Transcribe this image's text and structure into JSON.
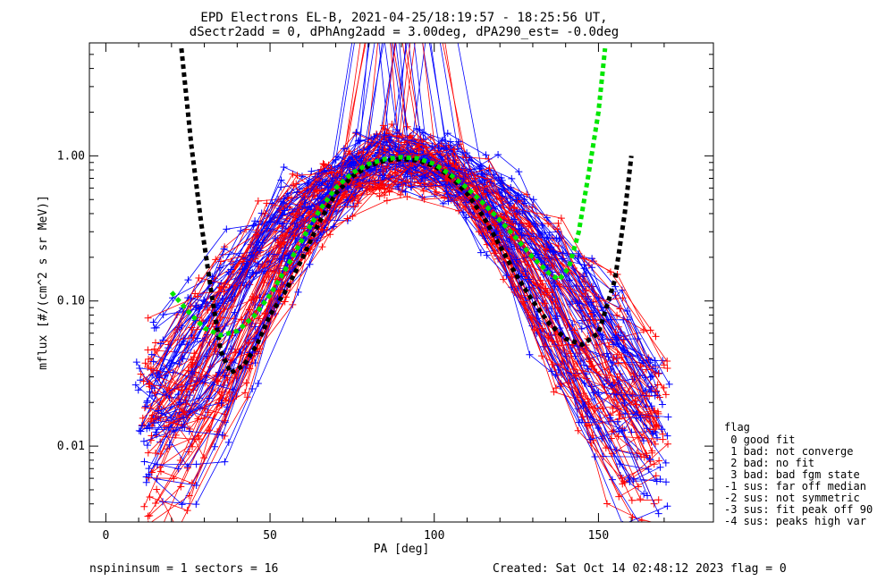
{
  "chart_data": {
    "type": "line",
    "title_lines": [
      "EPD Electrons EL-B, 2021-04-25/18:19:57 - 18:25:56 UT,",
      "dSectr2add = 0, dPhAng2add = 3.00deg, dPA290_est=  -0.0deg"
    ],
    "xlabel": "PA [deg]",
    "ylabel": "mflux [#/(cm^2 s sr MeV)]",
    "x_axis": {
      "range": [
        -5,
        185
      ],
      "ticks": [
        0,
        50,
        100,
        150
      ],
      "tick_labels": [
        "0",
        "50",
        "100",
        "150"
      ]
    },
    "y_axis": {
      "scale": "log",
      "range": [
        0.003,
        6
      ],
      "ticks": [
        0.01,
        0.1,
        1.0
      ],
      "tick_labels": [
        "0.01",
        "0.10",
        "1.00"
      ]
    },
    "fit_curves": [
      {
        "color": "#000000",
        "style": "dashed",
        "x": [
          23,
          26,
          29,
          32,
          35,
          38,
          42,
          46,
          50,
          55,
          60,
          65,
          70,
          75,
          80,
          85,
          90,
          95,
          100,
          105,
          110,
          115,
          120,
          125,
          130,
          135,
          140,
          145,
          150,
          155,
          158,
          160
        ],
        "y": [
          5.5,
          1.2,
          0.35,
          0.12,
          0.045,
          0.032,
          0.036,
          0.05,
          0.08,
          0.12,
          0.2,
          0.35,
          0.55,
          0.72,
          0.85,
          0.93,
          0.95,
          0.93,
          0.85,
          0.72,
          0.55,
          0.38,
          0.24,
          0.15,
          0.1,
          0.07,
          0.055,
          0.05,
          0.06,
          0.14,
          0.4,
          1.0
        ]
      },
      {
        "color": "#00e600",
        "style": "dashed",
        "x": [
          20,
          25,
          30,
          35,
          40,
          45,
          50,
          55,
          60,
          65,
          70,
          75,
          80,
          85,
          90,
          95,
          100,
          105,
          110,
          115,
          120,
          125,
          130,
          135,
          138,
          141,
          144,
          147,
          150,
          152
        ],
        "y": [
          0.115,
          0.085,
          0.065,
          0.058,
          0.062,
          0.078,
          0.11,
          0.17,
          0.27,
          0.42,
          0.6,
          0.76,
          0.88,
          0.95,
          0.98,
          0.96,
          0.88,
          0.74,
          0.6,
          0.47,
          0.36,
          0.27,
          0.2,
          0.155,
          0.14,
          0.17,
          0.3,
          0.75,
          2.0,
          5.5
        ]
      }
    ],
    "data_series": [
      {
        "name": "red",
        "color": "#ff0000"
      },
      {
        "name": "blue",
        "color": "#0000ff"
      }
    ],
    "legend": {
      "title": "flag",
      "entries": [
        " 0 good fit",
        " 1 bad: not converge",
        " 2 bad: no fit",
        " 3 bad: bad fgm state",
        "-1 sus: far off median",
        "-2 sus: not symmetric",
        "-3 sus: fit peak off 90",
        "-4 sus: peaks high var"
      ],
      "placement": "right-bottom"
    },
    "footer": {
      "left": "nspininsum =  1  sectors = 16",
      "right": "Created: Sat Oct 14 02:48:12 2023    flag = 0"
    }
  }
}
